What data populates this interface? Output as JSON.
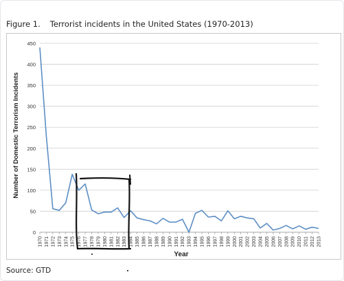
{
  "figure": {
    "number": "Figure 1.",
    "title": "Terrorist incidents in the United States (1970-2013)"
  },
  "source": "Source: GTD",
  "chart_data": {
    "type": "line",
    "xlabel": "Year",
    "ylabel": "Number of Domestic Terrorism Incidents",
    "ylim": [
      0,
      450
    ],
    "yticks": [
      0,
      50,
      100,
      150,
      200,
      250,
      300,
      350,
      400,
      450
    ],
    "grid": true,
    "line_color": "#5b8ec4",
    "annotation_color": "#111111",
    "x": [
      "1970",
      "1971",
      "1972",
      "1973",
      "1974",
      "1975",
      "1976",
      "1977",
      "1978",
      "1979",
      "1980",
      "1981",
      "1982",
      "1983",
      "1984",
      "1985",
      "1986",
      "1987",
      "1988",
      "1989",
      "1990",
      "1991",
      "1992",
      "1993",
      "1994",
      "1995",
      "1996",
      "1997",
      "1998",
      "1999",
      "2000",
      "2001",
      "2002",
      "2003",
      "2004",
      "2005",
      "2006",
      "2007",
      "2008",
      "2009",
      "2010",
      "2011",
      "2012",
      "2013"
    ],
    "series": [
      {
        "values": [
          440,
          230,
          56,
          52,
          70,
          138,
          100,
          115,
          53,
          44,
          48,
          48,
          58,
          35,
          51,
          34,
          30,
          27,
          20,
          33,
          24,
          24,
          31,
          0,
          45,
          52,
          36,
          38,
          27,
          51,
          32,
          38,
          34,
          32,
          10,
          21,
          5,
          9,
          16,
          8,
          15,
          7,
          12,
          9
        ]
      }
    ]
  }
}
